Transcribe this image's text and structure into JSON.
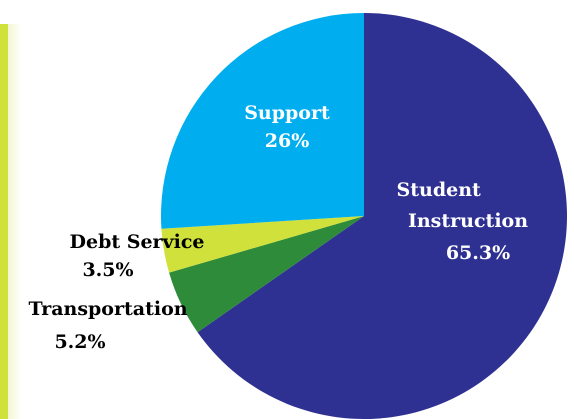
{
  "chart_data": {
    "type": "pie",
    "slices": [
      {
        "label": "Student Instruction",
        "pct_label": "65.3%",
        "value": 65.3,
        "color": "#2e3192"
      },
      {
        "label": "Transportation",
        "pct_label": "5.2%",
        "value": 5.2,
        "color": "#2e8b3a"
      },
      {
        "label": "Debt Service",
        "pct_label": "3.5%",
        "value": 3.5,
        "color": "#cfe13a"
      },
      {
        "label": "Support",
        "pct_label": "26%",
        "value": 26,
        "color": "#00aeef"
      }
    ],
    "label_colors": {
      "inside": "#ffffff",
      "outside": "#000000"
    }
  }
}
